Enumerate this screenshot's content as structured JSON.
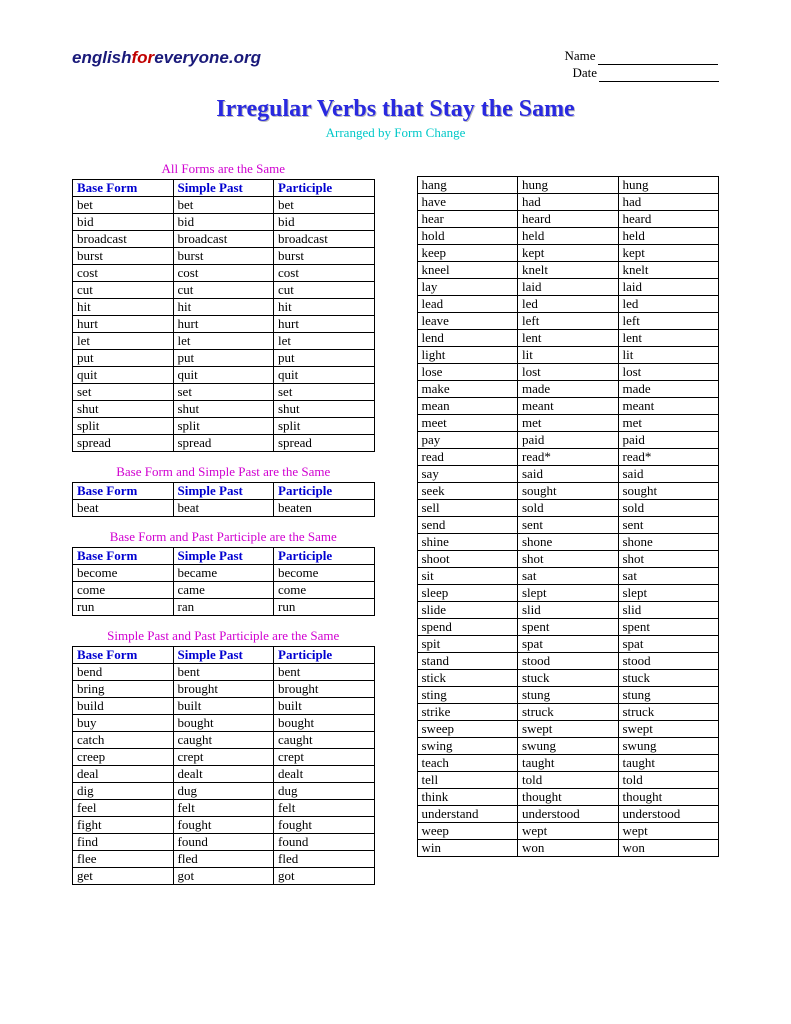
{
  "logo": {
    "part1": "english",
    "part2": "for",
    "part3": "everyone.org"
  },
  "header": {
    "name_label": "Name",
    "date_label": "Date"
  },
  "title": "Irregular Verbs that Stay the Same",
  "subtitle": "Arranged by Form Change",
  "columns": [
    "Base Form",
    "Simple Past",
    "Participle"
  ],
  "sections": [
    {
      "caption": "All Forms are the Same",
      "rows": [
        [
          "bet",
          "bet",
          "bet"
        ],
        [
          "bid",
          "bid",
          "bid"
        ],
        [
          "broadcast",
          "broadcast",
          "broadcast"
        ],
        [
          "burst",
          "burst",
          "burst"
        ],
        [
          "cost",
          "cost",
          "cost"
        ],
        [
          "cut",
          "cut",
          "cut"
        ],
        [
          "hit",
          "hit",
          "hit"
        ],
        [
          "hurt",
          "hurt",
          "hurt"
        ],
        [
          "let",
          "let",
          "let"
        ],
        [
          "put",
          "put",
          "put"
        ],
        [
          "quit",
          "quit",
          "quit"
        ],
        [
          "set",
          "set",
          "set"
        ],
        [
          "shut",
          "shut",
          "shut"
        ],
        [
          "split",
          "split",
          "split"
        ],
        [
          "spread",
          "spread",
          "spread"
        ]
      ]
    },
    {
      "caption": "Base Form and Simple Past are the Same",
      "rows": [
        [
          "beat",
          "beat",
          "beaten"
        ]
      ]
    },
    {
      "caption": "Base Form and Past Participle are the Same",
      "rows": [
        [
          "become",
          "became",
          "become"
        ],
        [
          "come",
          "came",
          "come"
        ],
        [
          "run",
          "ran",
          "run"
        ]
      ]
    },
    {
      "caption": "Simple Past and Past Participle are the Same",
      "rows": [
        [
          "bend",
          "bent",
          "bent"
        ],
        [
          "bring",
          "brought",
          "brought"
        ],
        [
          "build",
          "built",
          "built"
        ],
        [
          "buy",
          "bought",
          "bought"
        ],
        [
          "catch",
          "caught",
          "caught"
        ],
        [
          "creep",
          "crept",
          "crept"
        ],
        [
          "deal",
          "dealt",
          "dealt"
        ],
        [
          "dig",
          "dug",
          "dug"
        ],
        [
          "feel",
          "felt",
          "felt"
        ],
        [
          "fight",
          "fought",
          "fought"
        ],
        [
          "find",
          "found",
          "found"
        ],
        [
          "flee",
          "fled",
          "fled"
        ],
        [
          "get",
          "got",
          "got"
        ]
      ]
    }
  ],
  "right_rows": [
    [
      "hang",
      "hung",
      "hung"
    ],
    [
      "have",
      "had",
      "had"
    ],
    [
      "hear",
      "heard",
      "heard"
    ],
    [
      "hold",
      "held",
      "held"
    ],
    [
      "keep",
      "kept",
      "kept"
    ],
    [
      "kneel",
      "knelt",
      "knelt"
    ],
    [
      "lay",
      "laid",
      "laid"
    ],
    [
      "lead",
      "led",
      "led"
    ],
    [
      "leave",
      "left",
      "left"
    ],
    [
      "lend",
      "lent",
      "lent"
    ],
    [
      "light",
      "lit",
      "lit"
    ],
    [
      "lose",
      "lost",
      "lost"
    ],
    [
      "make",
      "made",
      "made"
    ],
    [
      "mean",
      "meant",
      "meant"
    ],
    [
      "meet",
      "met",
      "met"
    ],
    [
      "pay",
      "paid",
      "paid"
    ],
    [
      "read",
      "read*",
      "read*"
    ],
    [
      "say",
      "said",
      "said"
    ],
    [
      "seek",
      "sought",
      "sought"
    ],
    [
      "sell",
      "sold",
      "sold"
    ],
    [
      "send",
      "sent",
      "sent"
    ],
    [
      "shine",
      "shone",
      "shone"
    ],
    [
      "shoot",
      "shot",
      "shot"
    ],
    [
      "sit",
      "sat",
      "sat"
    ],
    [
      "sleep",
      "slept",
      "slept"
    ],
    [
      "slide",
      "slid",
      "slid"
    ],
    [
      "spend",
      "spent",
      "spent"
    ],
    [
      "spit",
      "spat",
      "spat"
    ],
    [
      "stand",
      "stood",
      "stood"
    ],
    [
      "stick",
      "stuck",
      "stuck"
    ],
    [
      "sting",
      "stung",
      "stung"
    ],
    [
      "strike",
      "struck",
      "struck"
    ],
    [
      "sweep",
      "swept",
      "swept"
    ],
    [
      "swing",
      "swung",
      "swung"
    ],
    [
      "teach",
      "taught",
      "taught"
    ],
    [
      "tell",
      "told",
      "told"
    ],
    [
      "think",
      "thought",
      "thought"
    ],
    [
      "understand",
      "understood",
      "understood"
    ],
    [
      "weep",
      "wept",
      "wept"
    ],
    [
      "win",
      "won",
      "won"
    ]
  ]
}
